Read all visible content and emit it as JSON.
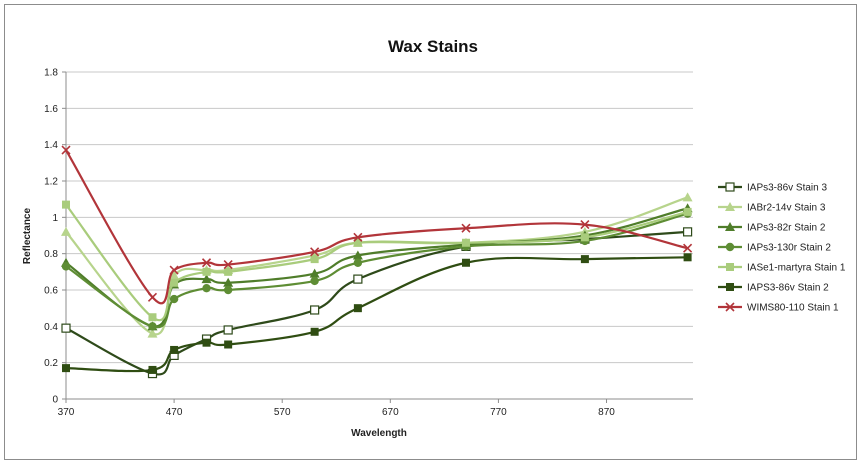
{
  "chart_data": {
    "type": "line",
    "title": "Wax Stains",
    "xlabel": "Wavelength",
    "ylabel": "Reflectance",
    "xlim": [
      370,
      950
    ],
    "ylim": [
      0,
      1.8
    ],
    "x_ticks": [
      370,
      470,
      570,
      670,
      770,
      870
    ],
    "y_ticks": [
      0,
      0.2,
      0.4,
      0.6,
      0.8,
      1,
      1.2,
      1.4,
      1.6,
      1.8
    ],
    "grid": "horizontal",
    "legend": "right",
    "series": [
      {
        "name": "IAPs3-86v Stain 3",
        "color": "#2e4a1a",
        "marker": "open-square",
        "points": [
          [
            370,
            0.39
          ],
          [
            450,
            0.14
          ],
          [
            470,
            0.24
          ],
          [
            500,
            0.33
          ],
          [
            520,
            0.38
          ],
          [
            600,
            0.49
          ],
          [
            640,
            0.66
          ],
          [
            740,
            0.84
          ],
          [
            850,
            0.88
          ],
          [
            945,
            0.92
          ]
        ]
      },
      {
        "name": "IABr2-14v Stain 3",
        "color": "#b7d48c",
        "marker": "triangle",
        "points": [
          [
            370,
            0.92
          ],
          [
            450,
            0.36
          ],
          [
            470,
            0.68
          ],
          [
            500,
            0.71
          ],
          [
            520,
            0.71
          ],
          [
            600,
            0.79
          ],
          [
            640,
            0.86
          ],
          [
            740,
            0.86
          ],
          [
            850,
            0.92
          ],
          [
            945,
            1.11
          ]
        ]
      },
      {
        "name": "IAPs3-82r Stain 2",
        "color": "#4f7d2a",
        "marker": "triangle",
        "points": [
          [
            370,
            0.75
          ],
          [
            450,
            0.4
          ],
          [
            470,
            0.63
          ],
          [
            500,
            0.66
          ],
          [
            520,
            0.64
          ],
          [
            600,
            0.69
          ],
          [
            640,
            0.79
          ],
          [
            740,
            0.85
          ],
          [
            850,
            0.9
          ],
          [
            945,
            1.05
          ]
        ]
      },
      {
        "name": "IAPs3-130r Stain 2",
        "color": "#5e8d34",
        "marker": "circle",
        "points": [
          [
            370,
            0.73
          ],
          [
            450,
            0.4
          ],
          [
            470,
            0.55
          ],
          [
            500,
            0.61
          ],
          [
            520,
            0.6
          ],
          [
            600,
            0.65
          ],
          [
            640,
            0.75
          ],
          [
            740,
            0.84
          ],
          [
            850,
            0.87
          ],
          [
            945,
            1.02
          ]
        ]
      },
      {
        "name": "IASe1-martyra Stain 1",
        "color": "#a9cc7c",
        "marker": "square",
        "points": [
          [
            370,
            1.07
          ],
          [
            450,
            0.45
          ],
          [
            470,
            0.64
          ],
          [
            500,
            0.7
          ],
          [
            520,
            0.7
          ],
          [
            600,
            0.77
          ],
          [
            640,
            0.86
          ],
          [
            740,
            0.86
          ],
          [
            850,
            0.89
          ],
          [
            945,
            1.03
          ]
        ]
      },
      {
        "name": "IAPS3-86v Stain 2",
        "color": "#2f4d12",
        "marker": "filled-square",
        "points": [
          [
            370,
            0.17
          ],
          [
            450,
            0.16
          ],
          [
            470,
            0.27
          ],
          [
            500,
            0.31
          ],
          [
            520,
            0.3
          ],
          [
            600,
            0.37
          ],
          [
            640,
            0.5
          ],
          [
            740,
            0.75
          ],
          [
            850,
            0.77
          ],
          [
            945,
            0.78
          ]
        ]
      },
      {
        "name": "WIMS80-110 Stain 1",
        "color": "#b2353a",
        "marker": "x",
        "points": [
          [
            370,
            1.37
          ],
          [
            450,
            0.56
          ],
          [
            470,
            0.71
          ],
          [
            500,
            0.75
          ],
          [
            520,
            0.74
          ],
          [
            600,
            0.81
          ],
          [
            640,
            0.89
          ],
          [
            740,
            0.94
          ],
          [
            850,
            0.96
          ],
          [
            945,
            0.83
          ]
        ]
      }
    ]
  }
}
